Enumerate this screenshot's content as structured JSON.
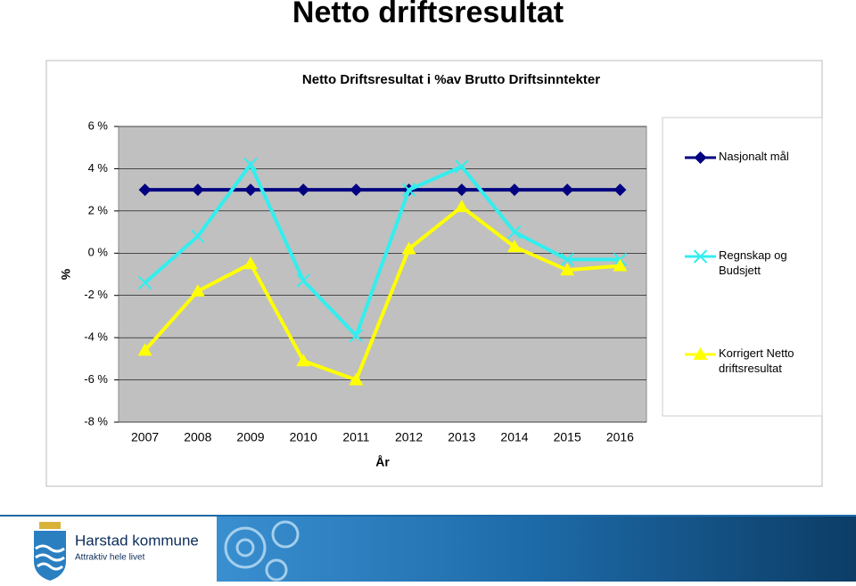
{
  "page_title": "Netto driftsresultat",
  "chart_data": {
    "type": "line",
    "title": "Netto Driftsresultat i %av Brutto Driftsinntekter",
    "y_label": "%",
    "x_label": "År",
    "categories": [
      "2007",
      "2008",
      "2009",
      "2010",
      "2011",
      "2012",
      "2013",
      "2014",
      "2015",
      "2016"
    ],
    "series": [
      {
        "name": "Nasjonalt mål",
        "color": "#000080",
        "marker": "diamond",
        "values": [
          3,
          3,
          3,
          3,
          3,
          3,
          3,
          3,
          3,
          3
        ]
      },
      {
        "name": "Regnskap og Budsjett",
        "color": "#33eeee",
        "marker": "x",
        "values": [
          -1.4,
          0.8,
          4.2,
          -1.3,
          -3.9,
          3.0,
          4.1,
          1.0,
          -0.3,
          -0.3
        ]
      },
      {
        "name": "Korrigert Netto driftsresultat",
        "color": "#ffff00",
        "marker": "triangle",
        "values": [
          -4.6,
          -1.8,
          -0.5,
          -5.1,
          -6.0,
          0.2,
          2.2,
          0.3,
          -0.8,
          -0.6
        ]
      }
    ],
    "ylim": [
      -8,
      6
    ],
    "yticks": [
      {
        "value": -8,
        "label": "-8 %"
      },
      {
        "value": -6,
        "label": "-6 %"
      },
      {
        "value": -4,
        "label": "-4 %"
      },
      {
        "value": -2,
        "label": "-2 %"
      },
      {
        "value": 0,
        "label": "0 %"
      },
      {
        "value": 2,
        "label": "2 %"
      },
      {
        "value": 4,
        "label": "4 %"
      },
      {
        "value": 6,
        "label": "6 %"
      }
    ],
    "grid": true,
    "legend": "right"
  },
  "footer": {
    "name": "Harstad kommune",
    "slogan": "Attraktiv hele livet"
  }
}
